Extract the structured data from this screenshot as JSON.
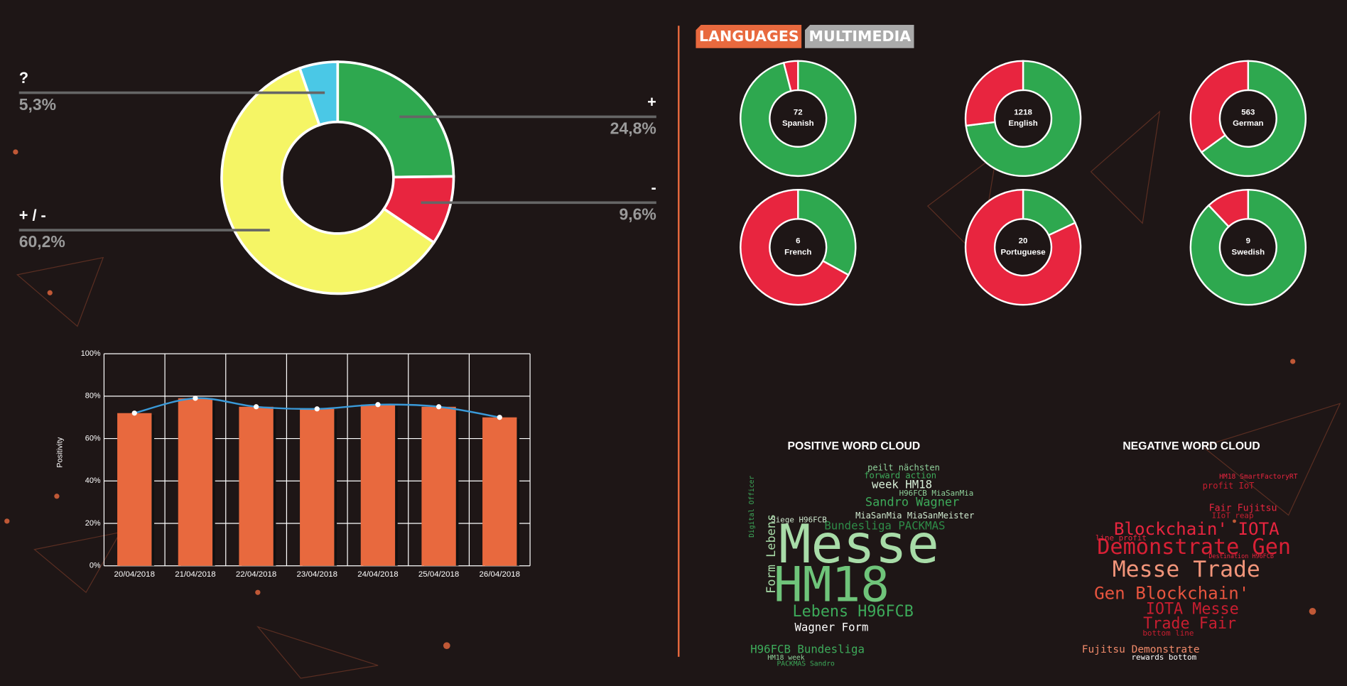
{
  "tabs": [
    "LANGUAGES",
    "MULTIMEDIA"
  ],
  "chart_data": [
    {
      "type": "donut",
      "categories": [
        "+",
        "-",
        "+ / -",
        "?"
      ],
      "values": [
        24.8,
        9.6,
        60.2,
        5.3
      ],
      "value_labels": [
        "24,8%",
        "9,6%",
        "60,2%",
        "5,3%"
      ],
      "colors": [
        "#2ea84f",
        "#e8253f",
        "#f5f565",
        "#4ac8e6"
      ]
    },
    {
      "type": "bar",
      "y_label": "Positivity",
      "categories": [
        "20/04/2018",
        "21/04/2018",
        "22/04/2018",
        "23/04/2018",
        "24/04/2018",
        "25/04/2018",
        "26/04/2018"
      ],
      "values": [
        72,
        79,
        75,
        74,
        76,
        75,
        70
      ],
      "color": "#e8693e",
      "line": true,
      "line_color": "#3a9ad9",
      "ylim": [
        0,
        100
      ],
      "yticks": [
        {
          "value": 0,
          "label": "0%"
        },
        {
          "value": 20,
          "label": "20%"
        },
        {
          "value": 40,
          "label": "40%"
        },
        {
          "value": 60,
          "label": "60%"
        },
        {
          "value": 80,
          "label": "80%"
        },
        {
          "value": 100,
          "label": "100%"
        }
      ],
      "grid": true
    },
    {
      "type": "donut",
      "count": 72,
      "label": "Spanish",
      "values": [
        96,
        4
      ],
      "colors": [
        "#2ea84f",
        "#e8253f"
      ]
    },
    {
      "type": "donut",
      "count": 1218,
      "label": "English",
      "values": [
        73,
        27
      ],
      "colors": [
        "#2ea84f",
        "#e8253f"
      ]
    },
    {
      "type": "donut",
      "count": 563,
      "label": "German",
      "values": [
        65,
        35
      ],
      "colors": [
        "#2ea84f",
        "#e8253f"
      ]
    },
    {
      "type": "donut",
      "count": 6,
      "label": "French",
      "values": [
        33,
        67
      ],
      "colors": [
        "#2ea84f",
        "#e8253f"
      ]
    },
    {
      "type": "donut",
      "count": 20,
      "label": "Portuguese",
      "values": [
        18,
        82
      ],
      "colors": [
        "#2ea84f",
        "#e8253f"
      ]
    },
    {
      "type": "donut",
      "count": 9,
      "label": "Swedish",
      "values": [
        88,
        12
      ],
      "colors": [
        "#2ea84f",
        "#e8253f"
      ]
    }
  ],
  "word_clouds": [
    {
      "title": "POSITIVE WORD CLOUD",
      "words": [
        "Messe",
        "HM18",
        "Lebens H96FCB",
        "Wagner Form",
        "H96FCB Bundesliga",
        "Sandro Wagner",
        "week HM18",
        "Bundesliga PACKMAS",
        "Form Lebens",
        "forward action",
        "peilt nächsten",
        "MiaSanMia MiaSanMeister",
        "Siege H96FCB",
        "Digital Officer",
        "H96FCB MiaSanMia",
        "HM18 week",
        "PACKMAS Sandro"
      ]
    },
    {
      "title": "NEGATIVE WORD CLOUD",
      "words": [
        "Demonstrate Gen",
        "Messe Trade",
        "Blockchain' IOTA",
        "Gen Blockchain'",
        "IOTA Messe",
        "Trade Fair",
        "Fujitsu Demonstrate",
        "Fair Fujitsu",
        "profit IoT",
        "line profit",
        "IIoT reap",
        "HM18 SmartFactoryRT",
        "bottom line",
        "rewards bottom",
        "Destination H96FCB"
      ]
    }
  ]
}
